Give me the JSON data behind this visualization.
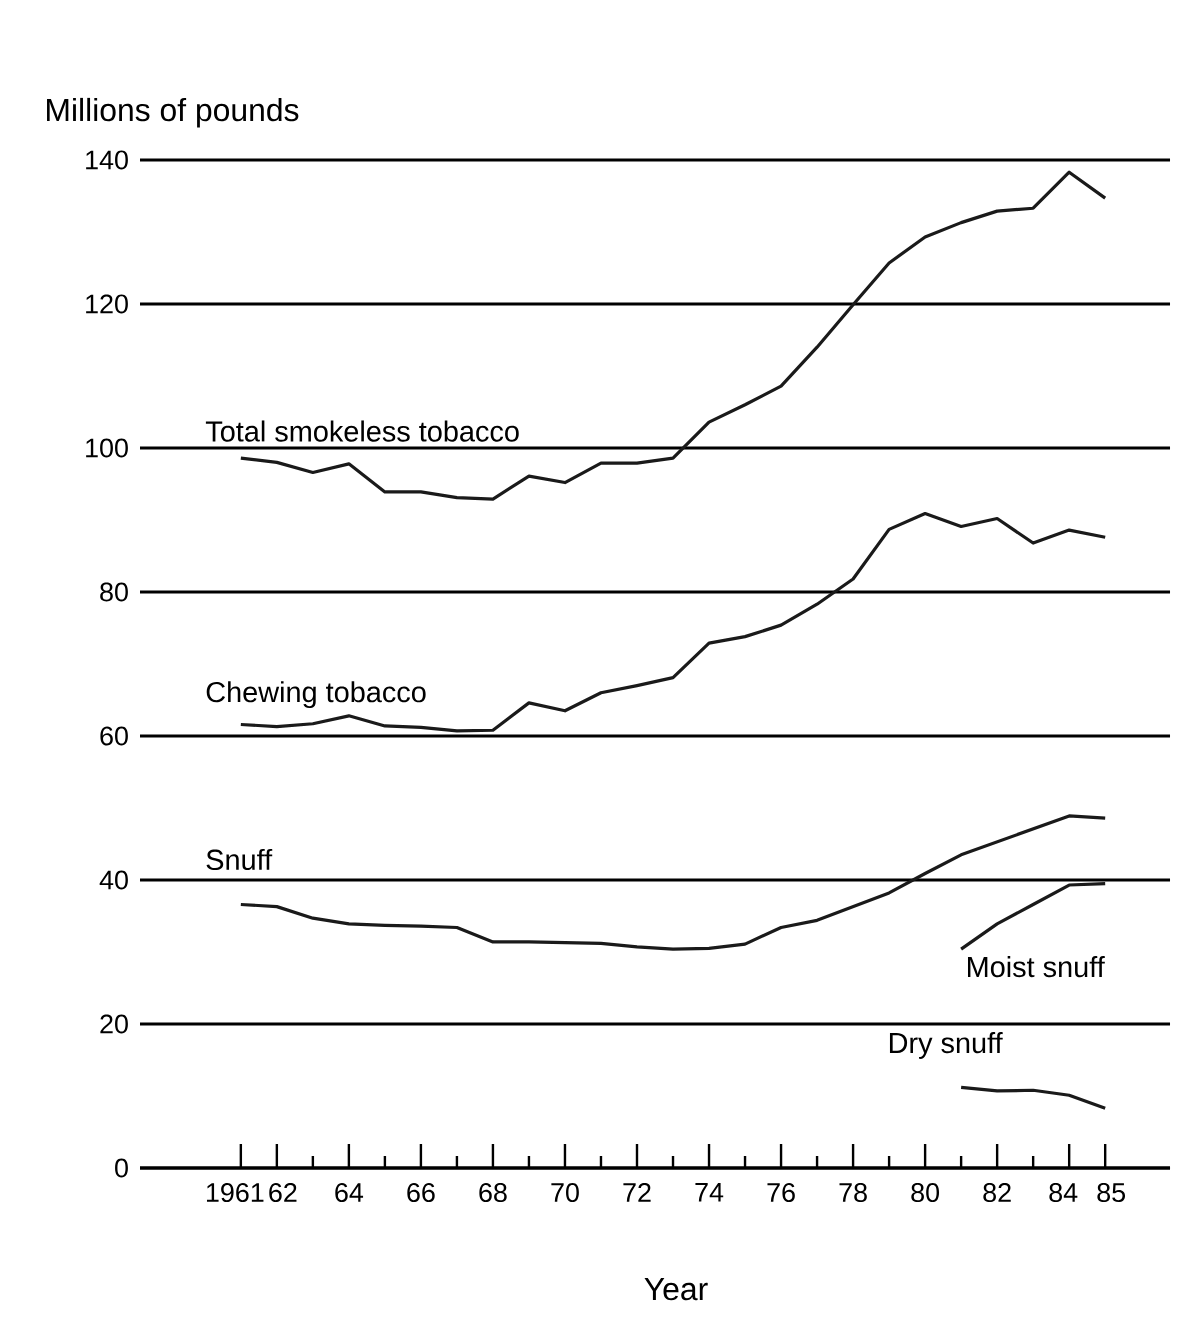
{
  "chart_data": {
    "type": "line",
    "ylabel": "Millions of pounds",
    "xlabel": "Year",
    "x": [
      1961,
      1962,
      1963,
      1964,
      1965,
      1966,
      1967,
      1968,
      1969,
      1970,
      1971,
      1972,
      1973,
      1974,
      1975,
      1976,
      1977,
      1978,
      1979,
      1980,
      1981,
      1982,
      1983,
      1984,
      1985
    ],
    "series": [
      {
        "name": "Total smokeless tobacco",
        "color": "#1a1a1a",
        "values": [
          98.6,
          98.0,
          96.6,
          97.8,
          93.9,
          93.9,
          93.1,
          92.9,
          96.1,
          95.2,
          97.9,
          97.9,
          98.6,
          103.6,
          106.0,
          108.6,
          114.0,
          119.9,
          125.7,
          129.3,
          131.3,
          132.9,
          133.3,
          138.3,
          134.7
        ]
      },
      {
        "name": "Chewing tobacco",
        "color": "#1a1a1a",
        "values": [
          61.6,
          61.3,
          61.7,
          62.8,
          61.4,
          61.2,
          60.7,
          60.8,
          64.6,
          63.5,
          66.0,
          67.0,
          68.1,
          72.9,
          73.8,
          75.4,
          78.3,
          81.8,
          88.7,
          90.9,
          89.1,
          90.2,
          86.8,
          88.6,
          87.6
        ]
      },
      {
        "name": "Snuff",
        "color": "#1a1a1a",
        "values": [
          36.6,
          36.3,
          34.7,
          33.9,
          33.7,
          33.6,
          33.4,
          31.4,
          31.4,
          31.3,
          31.2,
          30.7,
          30.4,
          30.5,
          31.1,
          33.4,
          34.4,
          36.3,
          38.2,
          40.9,
          43.5,
          45.3,
          47.1,
          48.9,
          48.6
        ]
      },
      {
        "name": "Moist snuff",
        "color": "#1a1a1a",
        "x": [
          1981,
          1982,
          1983,
          1984,
          1985
        ],
        "values": [
          30.4,
          33.9,
          36.6,
          39.3,
          39.5
        ]
      },
      {
        "name": "Dry snuff",
        "color": "#1a1a1a",
        "x": [
          1981,
          1982,
          1983,
          1984,
          1985
        ],
        "values": [
          11.2,
          10.7,
          10.8,
          10.1,
          8.3
        ]
      }
    ],
    "xlim": [
      1958.2,
      1986.8
    ],
    "xticks": [
      1961,
      {
        "value": 1962,
        "label": "62"
      },
      {
        "value": 1963,
        "label": null
      },
      {
        "value": 1964,
        "label": "64"
      },
      {
        "value": 1965,
        "label": null
      },
      {
        "value": 1966,
        "label": "66"
      },
      {
        "value": 1967,
        "label": null
      },
      {
        "value": 1968,
        "label": "68"
      },
      {
        "value": 1969,
        "label": null
      },
      {
        "value": 1970,
        "label": "70"
      },
      {
        "value": 1971,
        "label": null
      },
      {
        "value": 1972,
        "label": "72"
      },
      {
        "value": 1973,
        "label": null
      },
      {
        "value": 1974,
        "label": "74"
      },
      {
        "value": 1975,
        "label": null
      },
      {
        "value": 1976,
        "label": "76"
      },
      {
        "value": 1977,
        "label": null
      },
      {
        "value": 1978,
        "label": "78"
      },
      {
        "value": 1979,
        "label": null
      },
      {
        "value": 1980,
        "label": "80"
      },
      {
        "value": 1981,
        "label": null
      },
      {
        "value": 1982,
        "label": "82"
      },
      {
        "value": 1983,
        "label": null
      },
      {
        "value": 1984,
        "label": "84"
      },
      {
        "value": 1985,
        "label": "85"
      }
    ],
    "ylim": [
      0,
      140
    ],
    "yticks": [
      0,
      20,
      40,
      60,
      80,
      100,
      120,
      140
    ],
    "grid": "y"
  }
}
